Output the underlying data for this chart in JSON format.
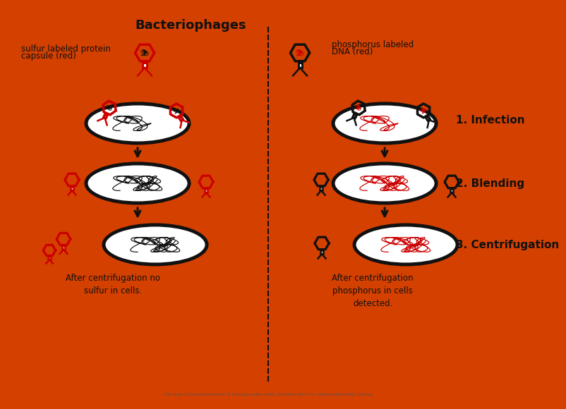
{
  "title": "Bacteriophages",
  "bg_color": "#eeeeee",
  "border_color": "#d44000",
  "text_left_label1": "sulfur labeled protein",
  "text_left_label2": "capsule (red)",
  "text_right_label1": "phosphorus labeled",
  "text_right_label2": "DNA (red)",
  "step1": "1. Infection",
  "step2": "2. Blending",
  "step3": "3. Centrifugation",
  "caption_left": "After centrifugation no\nsulfur in cells.",
  "caption_right": "After centrifugation\nphosphorus in cells\ndetected.",
  "red": "#cc0000",
  "black": "#111111",
  "lw": 1.8
}
